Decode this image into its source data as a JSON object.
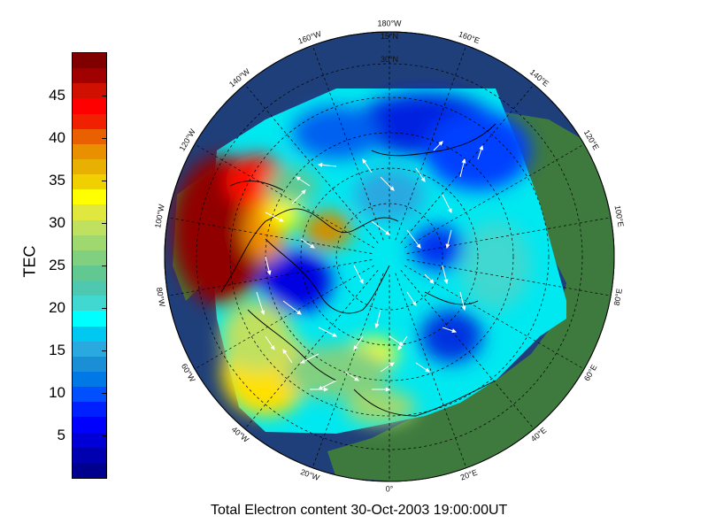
{
  "colorbar": {
    "label": "TEC",
    "ticks": [
      {
        "value": 5,
        "label": "5"
      },
      {
        "value": 10,
        "label": "10"
      },
      {
        "value": 15,
        "label": "15"
      },
      {
        "value": 20,
        "label": "20"
      },
      {
        "value": 25,
        "label": "25"
      },
      {
        "value": 30,
        "label": "30"
      },
      {
        "value": 35,
        "label": "35"
      },
      {
        "value": 40,
        "label": "40"
      },
      {
        "value": 45,
        "label": "45"
      }
    ],
    "min": 0,
    "max": 50,
    "colors": [
      "#00008f",
      "#0000b0",
      "#0000d6",
      "#0000ff",
      "#0020ff",
      "#0050ff",
      "#0078e6",
      "#1a8fd6",
      "#2aa8e0",
      "#00c8f0",
      "#00ffff",
      "#40d8d0",
      "#4fc8b0",
      "#60c890",
      "#80d080",
      "#a0d870",
      "#c0e060",
      "#e0e840",
      "#ffff00",
      "#f0d000",
      "#e8b000",
      "#e89000",
      "#e86000",
      "#f02000",
      "#ff0000",
      "#d01000",
      "#a00000",
      "#800000"
    ]
  },
  "map": {
    "longitude_labels": [
      "180°W",
      "160°E",
      "140°E",
      "120°E",
      "100°E",
      "80°E",
      "60°E",
      "40°E",
      "20°E",
      "0°",
      "20°W",
      "40°W",
      "60°W",
      "80°W",
      "100°W",
      "120°W",
      "140°W",
      "160°W"
    ],
    "latitude_labels": [
      "15°N",
      "30°N"
    ],
    "colors": {
      "ocean": "#1f3f7a",
      "land": "#3e7a3e",
      "outline": "#000000",
      "vector": "#ffffff"
    }
  },
  "caption": "Total Electron content 30-Oct-2003 19:00:00UT"
}
